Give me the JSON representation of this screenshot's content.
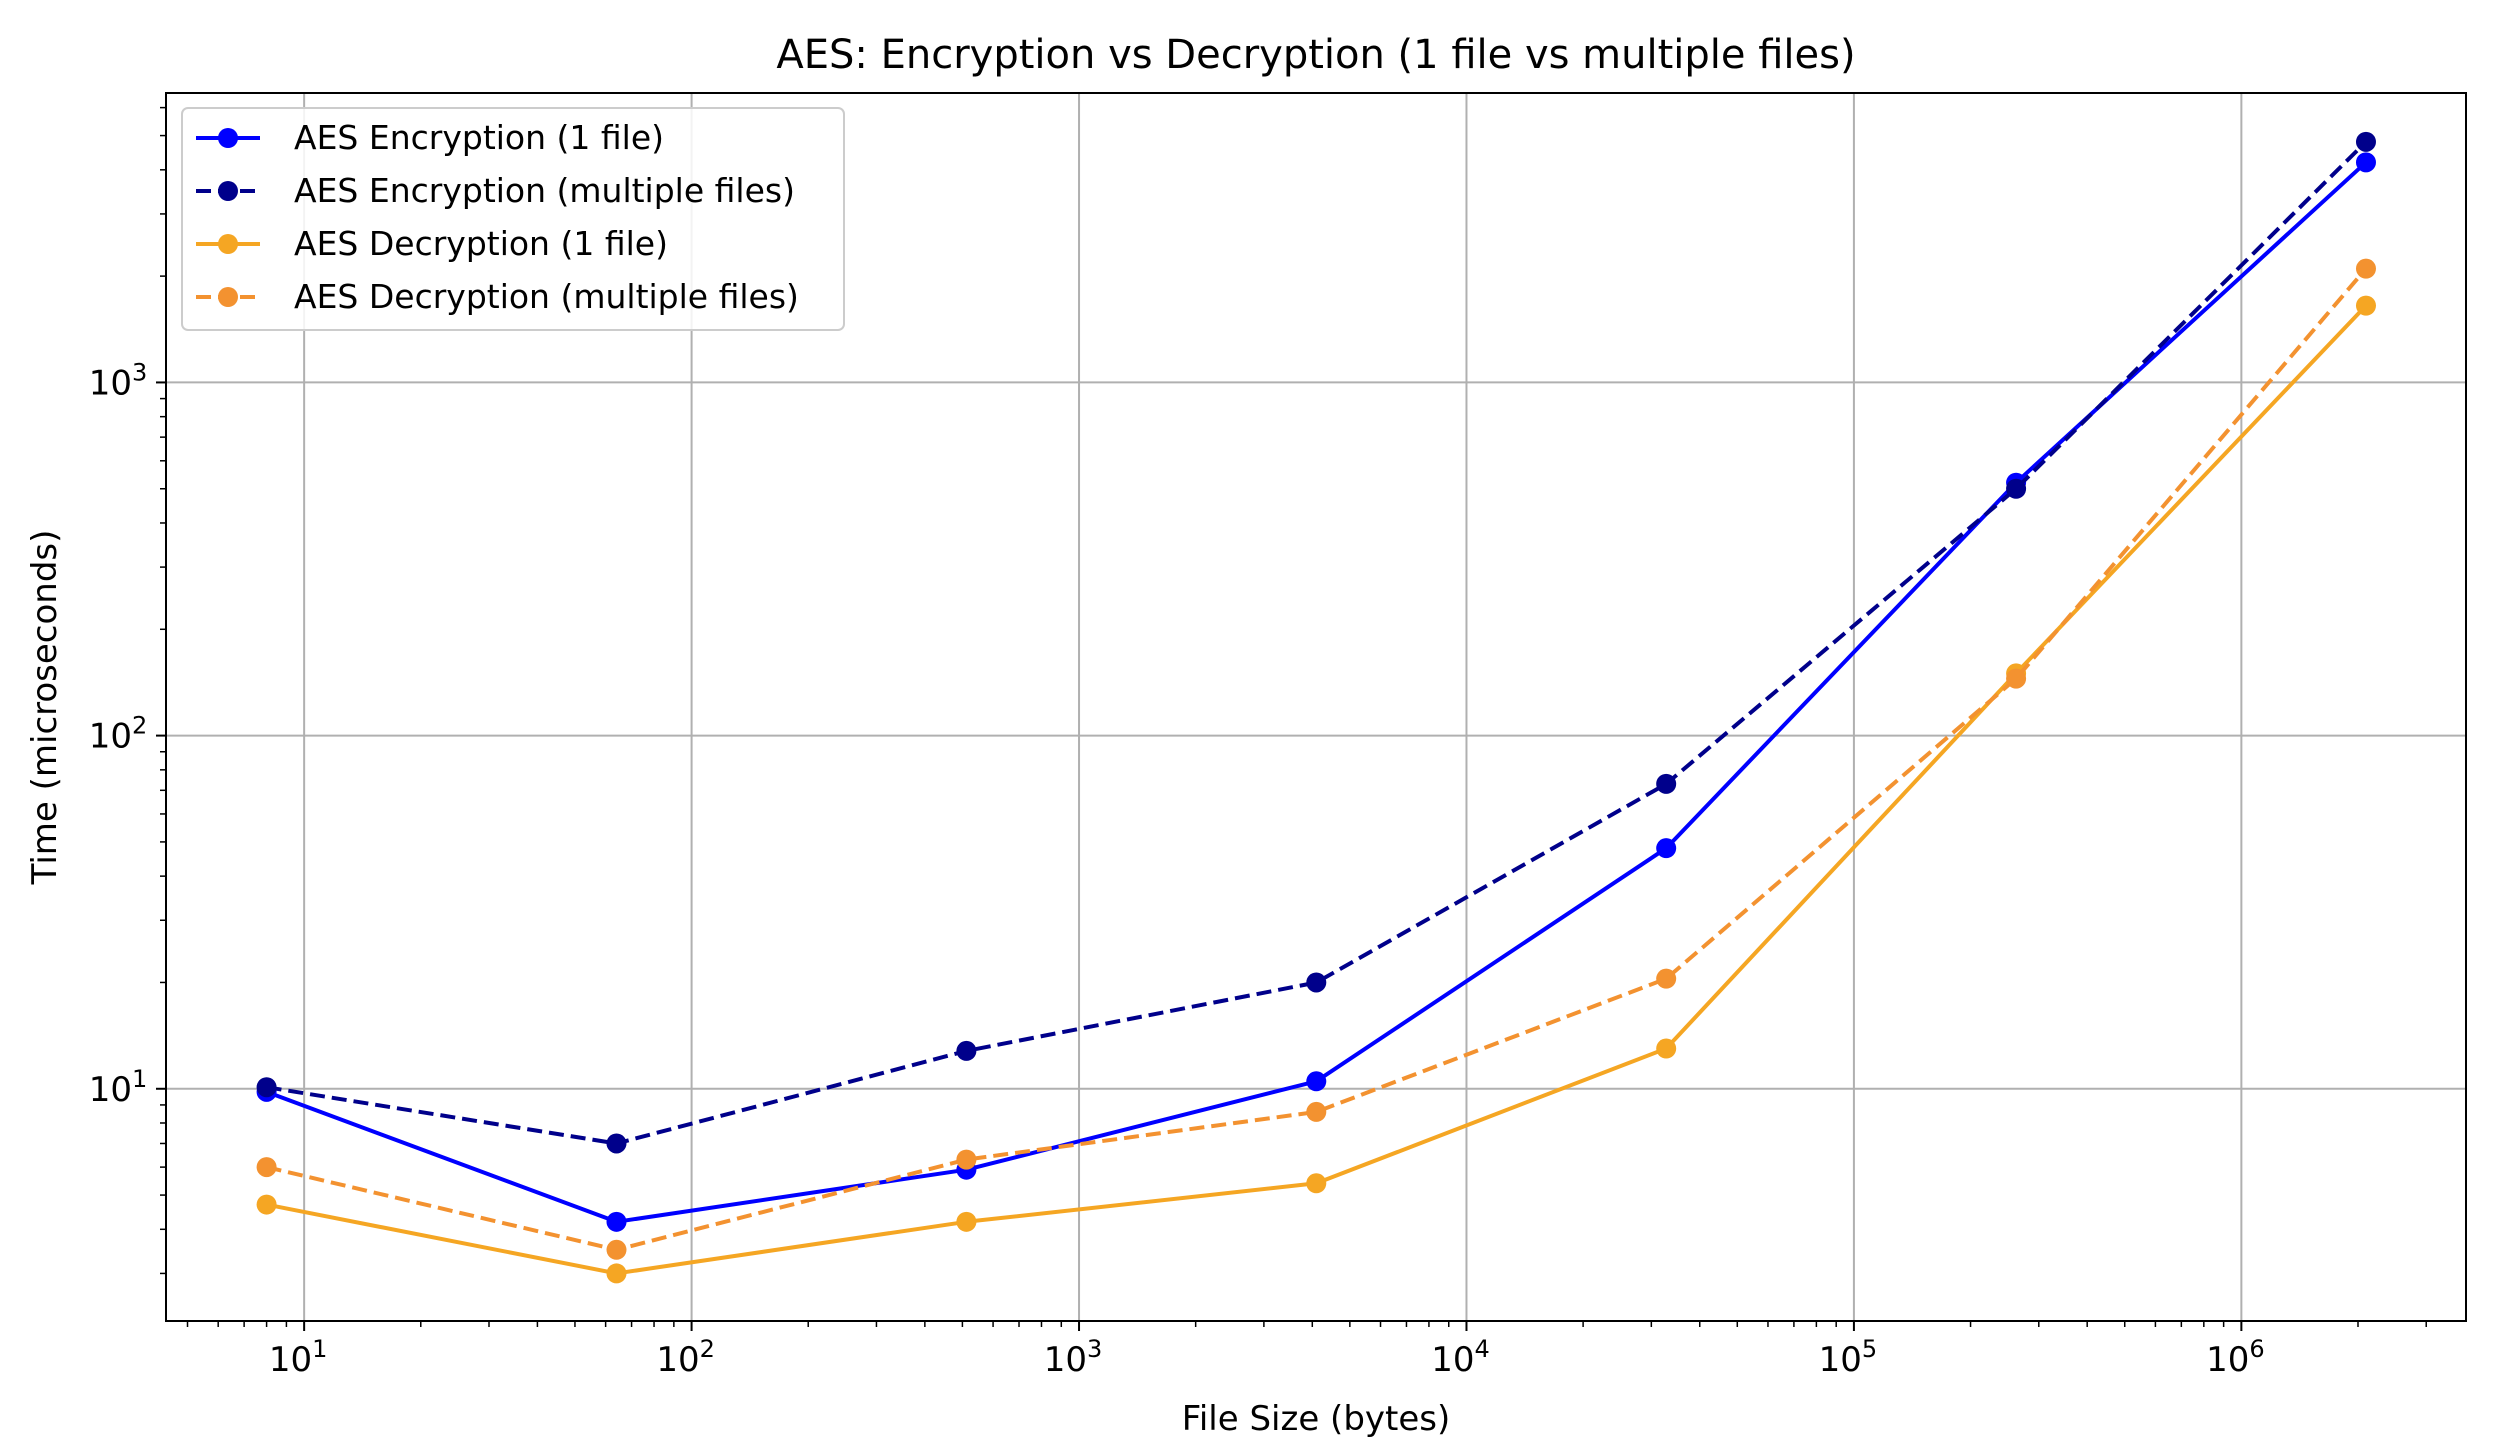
{
  "chart_data": {
    "type": "line",
    "title": "AES: Encryption vs Decryption (1 file vs multiple files)",
    "xlabel": "File Size (bytes)",
    "ylabel": "Time (microseconds)",
    "xscale": "log",
    "yscale": "log",
    "xlim": [
      4.4,
      3800000
    ],
    "ylim": [
      2.2,
      6600
    ],
    "x_ticks": [
      {
        "value": 10,
        "label": "10",
        "exp": "1"
      },
      {
        "value": 100,
        "label": "10",
        "exp": "2"
      },
      {
        "value": 1000,
        "label": "10",
        "exp": "3"
      },
      {
        "value": 10000,
        "label": "10",
        "exp": "4"
      },
      {
        "value": 100000,
        "label": "10",
        "exp": "5"
      },
      {
        "value": 1000000,
        "label": "10",
        "exp": "6"
      }
    ],
    "y_ticks": [
      {
        "value": 10,
        "label": "10",
        "exp": "1"
      },
      {
        "value": 100,
        "label": "10",
        "exp": "2"
      },
      {
        "value": 1000,
        "label": "10",
        "exp": "3"
      }
    ],
    "grid": true,
    "legend_position": "top-left",
    "x": [
      8,
      64,
      512,
      4096,
      32768,
      262144,
      2097152
    ],
    "series": [
      {
        "name": "AES Encryption (1 file)",
        "color": "#0000ff",
        "linestyle": "solid",
        "values": [
          9.8,
          4.2,
          5.9,
          10.5,
          48,
          520,
          4200
        ]
      },
      {
        "name": "AES Encryption (multiple files)",
        "color": "#00008b",
        "linestyle": "dashed",
        "values": [
          10.1,
          7.0,
          12.8,
          20,
          73,
          500,
          4800
        ]
      },
      {
        "name": "AES Decryption (1 file)",
        "color": "#f5a623",
        "linestyle": "solid",
        "values": [
          4.7,
          3.0,
          4.2,
          5.4,
          13,
          150,
          1650
        ]
      },
      {
        "name": "AES Decryption (multiple files)",
        "color": "#f39230",
        "linestyle": "dashed",
        "values": [
          6.0,
          3.5,
          6.3,
          8.6,
          20.5,
          145,
          2100
        ]
      }
    ]
  }
}
